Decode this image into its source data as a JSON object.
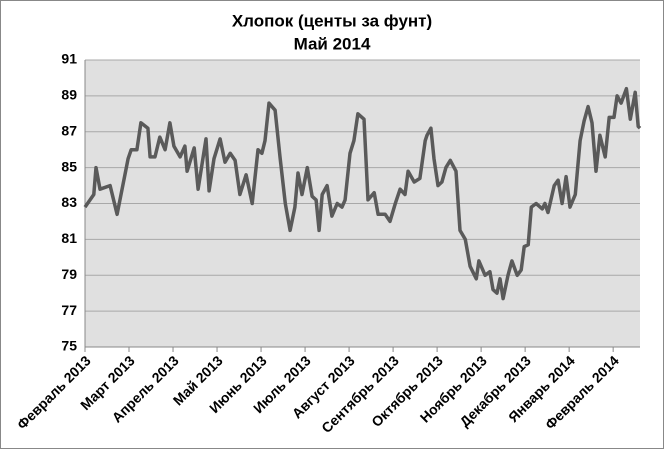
{
  "chart_data": {
    "type": "line",
    "title": "Хлопок (центы за фунт)",
    "subtitle": "Май 2014",
    "x": [
      0,
      0.2,
      0.25,
      0.34,
      0.57,
      0.73,
      0.98,
      1.05,
      1.18,
      1.27,
      1.43,
      1.48,
      1.59,
      1.7,
      1.82,
      1.93,
      2.02,
      2.16,
      2.27,
      2.32,
      2.48,
      2.57,
      2.75,
      2.82,
      2.93,
      3.07,
      3.18,
      3.3,
      3.41,
      3.52,
      3.66,
      3.8,
      3.93,
      4.02,
      4.09,
      4.18,
      4.32,
      4.43,
      4.55,
      4.66,
      4.77,
      4.84,
      4.93,
      5.05,
      5.16,
      5.25,
      5.32,
      5.39,
      5.5,
      5.61,
      5.73,
      5.84,
      5.91,
      6.02,
      6.11,
      6.2,
      6.34,
      6.43,
      6.57,
      6.66,
      6.82,
      6.93,
      7.05,
      7.16,
      7.27,
      7.34,
      7.48,
      7.61,
      7.73,
      7.77,
      7.86,
      7.93,
      8.02,
      8.11,
      8.2,
      8.3,
      8.43,
      8.52,
      8.64,
      8.75,
      8.89,
      8.95,
      9.09,
      9.2,
      9.27,
      9.36,
      9.43,
      9.5,
      9.61,
      9.7,
      9.82,
      9.91,
      9.98,
      10.07,
      10.14,
      10.25,
      10.39,
      10.45,
      10.52,
      10.66,
      10.75,
      10.84,
      10.93,
      11.02,
      11.14,
      11.25,
      11.34,
      11.43,
      11.52,
      11.61,
      11.7,
      11.82,
      11.91,
      12.02,
      12.09,
      12.18,
      12.3,
      12.39,
      12.5,
      12.57,
      12.61
    ],
    "series": [
      {
        "name": "Хлопок",
        "color": "#5a5a5a",
        "values": [
          82.8,
          83.5,
          85.0,
          83.8,
          84.0,
          82.4,
          85.5,
          86.0,
          86.0,
          87.5,
          87.2,
          85.6,
          85.6,
          86.7,
          86.0,
          87.5,
          86.2,
          85.6,
          86.2,
          84.8,
          86.1,
          83.8,
          86.6,
          83.7,
          85.5,
          86.6,
          85.3,
          85.8,
          85.4,
          83.5,
          84.6,
          83.0,
          86.0,
          85.8,
          86.5,
          88.6,
          88.2,
          85.6,
          83.0,
          81.5,
          82.8,
          84.7,
          83.5,
          85.0,
          83.4,
          83.2,
          81.5,
          83.5,
          84.0,
          82.3,
          83.0,
          82.8,
          83.2,
          85.8,
          86.5,
          88.0,
          87.7,
          83.2,
          83.6,
          82.4,
          82.4,
          82.0,
          83.0,
          83.8,
          83.5,
          84.8,
          84.2,
          84.4,
          86.5,
          86.8,
          87.2,
          85.5,
          84.0,
          84.2,
          85.0,
          85.4,
          84.8,
          81.5,
          81.0,
          79.5,
          78.8,
          79.8,
          79.0,
          79.2,
          78.2,
          78.0,
          78.8,
          77.7,
          79.0,
          79.8,
          79.0,
          79.3,
          80.6,
          80.7,
          82.8,
          83.0,
          82.7,
          83.0,
          82.5,
          84.0,
          84.3,
          83.0,
          84.5,
          82.8,
          83.5,
          86.5,
          87.6,
          88.4,
          87.5,
          84.8,
          86.8,
          85.6,
          87.8,
          87.8,
          89.0,
          88.6,
          89.4,
          87.7,
          89.2,
          87.3,
          87.2
        ]
      }
    ],
    "xlim": [
      0,
      12.61
    ],
    "xticks": [
      {
        "value": 0,
        "label": "Февраль 2013"
      },
      {
        "value": 1,
        "label": "Март 2013"
      },
      {
        "value": 2,
        "label": "Апрель 2013"
      },
      {
        "value": 3,
        "label": "Май 2013"
      },
      {
        "value": 4,
        "label": "Июнь 2013"
      },
      {
        "value": 5,
        "label": "Июль 2013"
      },
      {
        "value": 6,
        "label": "Август 2013"
      },
      {
        "value": 7,
        "label": "Сентябрь 2013"
      },
      {
        "value": 8,
        "label": "Октябрь 2013"
      },
      {
        "value": 9,
        "label": "Ноябрь 2013"
      },
      {
        "value": 10,
        "label": "Декабрь 2013"
      },
      {
        "value": 11,
        "label": "Январь 2014"
      },
      {
        "value": 12,
        "label": "Февраль 2014"
      }
    ],
    "ylim": [
      75,
      91
    ],
    "yticks": [
      75,
      77,
      79,
      81,
      83,
      85,
      87,
      89,
      91
    ],
    "grid": true
  }
}
